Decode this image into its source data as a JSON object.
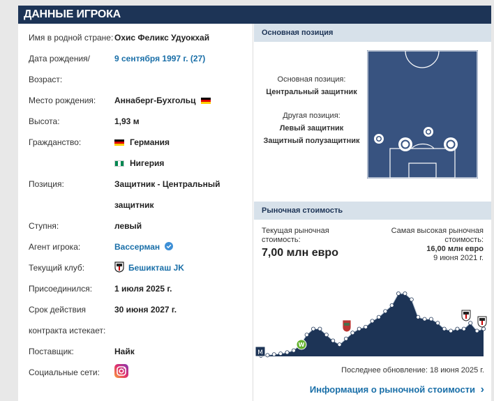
{
  "header": {
    "title": "ДАННЫЕ ИГРОКА"
  },
  "info": {
    "native_name_label": "Имя в родной стране:",
    "native_name": "Охис Феликс Удуокхай",
    "dob_label": "Дата рождения/",
    "dob": "9 сентября 1997 г. (27)",
    "age_label": "Возраст:",
    "birthplace_label": "Место рождения:",
    "birthplace": "Аннаберг-Бухгольц",
    "height_label": "Высота:",
    "height": "1,93 м",
    "citizenship_label": "Гражданство:",
    "citizenship_1": "Германия",
    "citizenship_2": "Нигерия",
    "position_label": "Позиция:",
    "position_line1": "Защитник - Центральный",
    "position_line2": "защитник",
    "foot_label": "Ступня:",
    "foot": "левый",
    "agent_label": "Агент игрока:",
    "agent": "Вассерман",
    "club_label": "Текущий клуб:",
    "club": "Бешикташ JK",
    "joined_label": "Присоединился:",
    "joined": "1 июля 2025 г.",
    "contract_label_1": "Срок действия",
    "contract_label_2": "контракта истекает:",
    "contract": "30 июня 2027 г.",
    "supplier_label": "Поставщик:",
    "supplier": "Найк",
    "social_label": "Социальные сети:"
  },
  "position_section": {
    "title": "Основная позиция",
    "main_label": "Основная позиция:",
    "main_value": "Центральный защитник",
    "other_label": "Другая позиция:",
    "other_1": "Левый защитник",
    "other_2": "Защитный полузащитник"
  },
  "market": {
    "title": "Рыночная стоимость",
    "current_label_1": "Текущая рыночная",
    "current_label_2": "стоимость:",
    "current_value": "7,00 млн евро",
    "highest_label_1": "Самая высокая рыночная",
    "highest_label_2": "стоимость:",
    "highest_value": "16,00 млн евро",
    "highest_date": "9 июня 2021 г.",
    "last_update": "Последнее обновление: 18 июня 2025 г.",
    "link": "Информация о рыночной стоимости",
    "link_arrow": "›"
  },
  "colors": {
    "header": "#1d3456",
    "pitch": "#385380",
    "link": "#1a6fa8"
  },
  "chart_data": {
    "type": "area",
    "title": "Рыночная стоимость",
    "xlabel": "",
    "ylabel": "млн евро",
    "ylim": [
      0,
      16
    ],
    "values": [
      0.2,
      0.3,
      0.5,
      0.7,
      1.0,
      1.5,
      3.0,
      5.5,
      7.0,
      7.0,
      5.5,
      4.0,
      3.0,
      4.5,
      6.0,
      7.0,
      7.5,
      9.0,
      10.0,
      11.5,
      13.0,
      16.0,
      16.0,
      14.5,
      10.0,
      9.5,
      9.5,
      8.5,
      7.0,
      6.5,
      7.0,
      7.0,
      8.5,
      6.5,
      7.0
    ]
  }
}
